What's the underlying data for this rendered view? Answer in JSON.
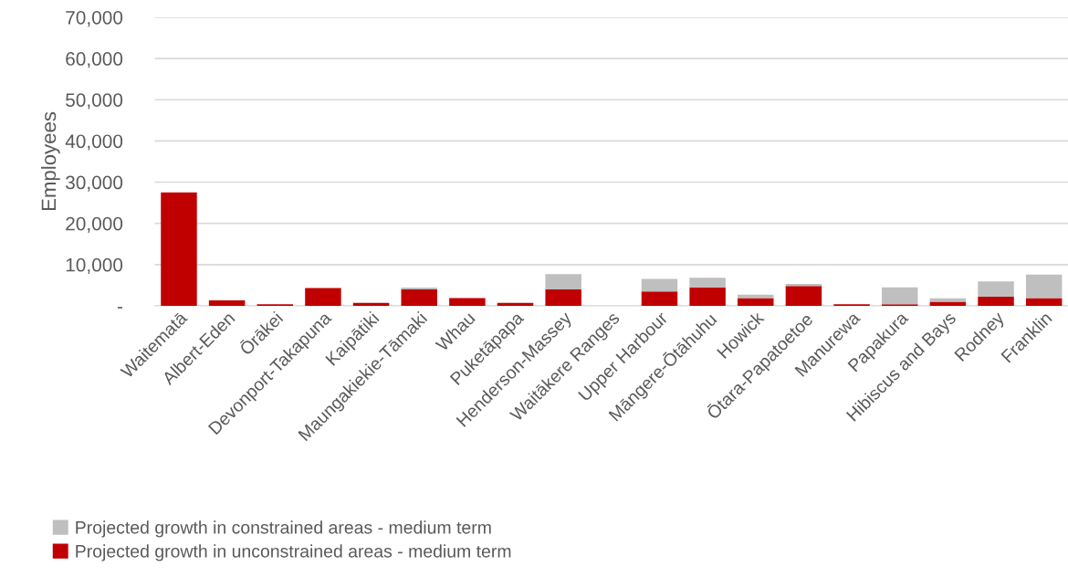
{
  "chart_data": {
    "type": "bar",
    "stacked": true,
    "ylabel": "Employees",
    "categories": [
      "Waitematā",
      "Albert-Eden",
      "Ōrākei",
      "Devonport-Takapuna",
      "Kaipātiki",
      "Maungakiekie-Tāmaki",
      "Whau",
      "Puketāpapa",
      "Henderson-Massey",
      "Waitākere Ranges",
      "Upper Harbour",
      "Māngere-Ōtāhuhu",
      "Howick",
      "Ōtara-Papatoetoe",
      "Manurewa",
      "Papakura",
      "Hibiscus and Bays",
      "Rodney",
      "Franklin"
    ],
    "series": [
      {
        "name": "Projected growth in unconstrained areas - medium term",
        "color": "#c00000",
        "values": [
          27500,
          1300,
          400,
          4300,
          700,
          4000,
          1900,
          700,
          4000,
          0,
          3500,
          4500,
          1900,
          4800,
          400,
          400,
          1000,
          2200,
          1900
        ]
      },
      {
        "name": "Projected growth in constrained areas - medium term",
        "color": "#bfbfbf",
        "values": [
          0,
          0,
          0,
          0,
          0,
          400,
          0,
          0,
          3700,
          0,
          3000,
          2300,
          800,
          500,
          null,
          4100,
          800,
          3700,
          5700
        ]
      }
    ],
    "ylim": [
      0,
      70000
    ],
    "yticks": [
      {
        "value": 0,
        "label": "-"
      },
      {
        "value": 10000,
        "label": "10,000"
      },
      {
        "value": 20000,
        "label": "20,000"
      },
      {
        "value": 30000,
        "label": "30,000"
      },
      {
        "value": 40000,
        "label": "40,000"
      },
      {
        "value": 50000,
        "label": "50,000"
      },
      {
        "value": 60000,
        "label": "60,000"
      },
      {
        "value": 70000,
        "label": "70,000"
      }
    ],
    "grid": "y",
    "legend": "bottom left"
  }
}
